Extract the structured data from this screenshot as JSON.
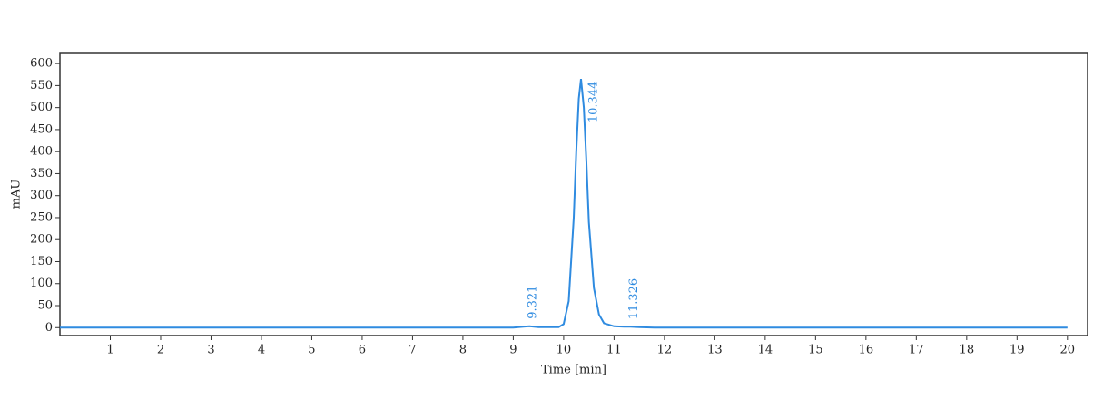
{
  "chart_data": {
    "type": "line",
    "x_label": "Time [min]",
    "y_label": "mAU",
    "x": [
      0,
      9.0,
      9.2,
      9.321,
      9.5,
      9.9,
      10.0,
      10.1,
      10.2,
      10.25,
      10.3,
      10.344,
      10.4,
      10.45,
      10.5,
      10.6,
      10.7,
      10.8,
      11.0,
      11.2,
      11.326,
      11.5,
      11.8,
      20
    ],
    "series": [
      {
        "color": "#2f8be0",
        "values": [
          0,
          0,
          2,
          3,
          1,
          1,
          8,
          60,
          250,
          400,
          520,
          565,
          500,
          380,
          240,
          90,
          30,
          10,
          3,
          2,
          2,
          1,
          0,
          0
        ]
      }
    ],
    "peaks": [
      {
        "x": 9.321,
        "y": 3
      },
      {
        "x": 10.344,
        "y": 565
      },
      {
        "x": 11.326,
        "y": 2
      }
    ],
    "xlim": [
      0,
      20.4
    ],
    "ylim": [
      -18,
      625
    ],
    "xticks": [
      1,
      2,
      3,
      4,
      5,
      6,
      7,
      8,
      9,
      10,
      11,
      12,
      13,
      14,
      15,
      16,
      17,
      18,
      19,
      20
    ],
    "yticks": [
      0,
      50,
      100,
      150,
      200,
      250,
      300,
      350,
      400,
      450,
      500,
      550,
      600
    ]
  }
}
